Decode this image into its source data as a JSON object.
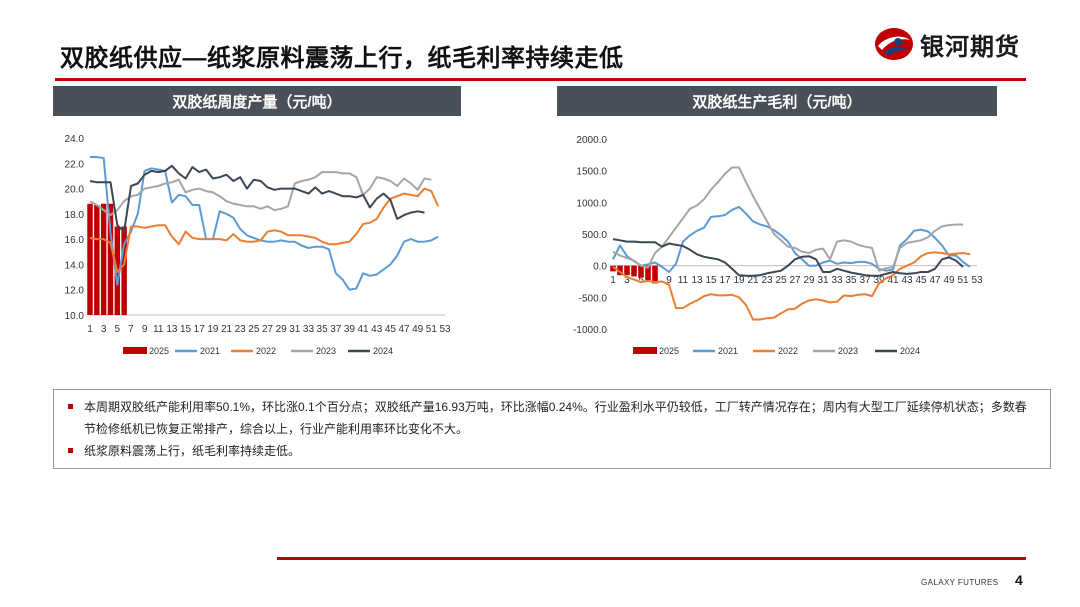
{
  "header": {
    "title": "双胶纸供应—纸浆原料震荡上行，纸毛利率持续走低",
    "logo_text": "银河期货"
  },
  "colors": {
    "accent_red": "#c00000",
    "panel_head": "#4a5059",
    "series_2025": "#c00000",
    "series_2021": "#5b9bd5",
    "series_2022": "#ed7d31",
    "series_2023": "#a5a5a5",
    "series_2024": "#3d4654"
  },
  "chart_data": [
    {
      "type": "line",
      "title": "双胶纸周度产量（元/吨）",
      "ylim": [
        10,
        24
      ],
      "yticks": [
        "24.0",
        "22.0",
        "20.0",
        "18.0",
        "16.0",
        "14.0",
        "12.0",
        "10.0"
      ],
      "xticks": [
        "1",
        "3",
        "5",
        "7",
        "9",
        "11",
        "13",
        "15",
        "17",
        "19",
        "21",
        "23",
        "25",
        "27",
        "29",
        "31",
        "33",
        "35",
        "37",
        "39",
        "41",
        "43",
        "45",
        "47",
        "49",
        "51",
        "53"
      ],
      "bar_series": {
        "name": "2025",
        "x": [
          1,
          2,
          3,
          4,
          5,
          6
        ],
        "values": [
          18.8,
          18.7,
          18.8,
          18.8,
          17.0,
          17.0
        ]
      },
      "series": [
        {
          "name": "2021",
          "values": [
            22.5,
            22.5,
            22.4,
            16.5,
            12.4,
            15.6,
            16.6,
            18.0,
            21.4,
            21.6,
            21.5,
            21.4,
            18.9,
            19.5,
            19.4,
            18.7,
            18.7,
            16.0,
            16.0,
            18.2,
            18.0,
            17.7,
            16.8,
            16.3,
            16.1,
            15.9,
            15.8,
            15.8,
            15.9,
            15.8,
            15.8,
            15.5,
            15.3,
            15.4,
            15.4,
            15.2,
            13.3,
            12.8,
            12.0,
            12.1,
            13.3,
            13.1,
            13.2,
            13.6,
            14.0,
            14.7,
            15.8,
            16.0,
            15.8,
            15.8,
            15.9,
            16.2
          ]
        },
        {
          "name": "2022",
          "values": [
            16.1,
            16.0,
            16.0,
            15.7,
            13.4,
            14.0,
            17.0,
            17.0,
            16.9,
            17.0,
            17.1,
            17.1,
            16.2,
            15.6,
            16.6,
            16.1,
            16.0,
            16.0,
            16.0,
            16.0,
            15.9,
            16.4,
            15.9,
            15.8,
            15.8,
            15.9,
            16.6,
            16.7,
            16.6,
            16.3,
            16.3,
            16.3,
            16.2,
            16.1,
            15.8,
            15.6,
            15.6,
            15.7,
            15.8,
            16.4,
            17.2,
            17.3,
            17.6,
            18.5,
            19.2,
            19.4,
            19.6,
            19.5,
            19.4,
            20.0,
            19.8,
            18.6
          ]
        },
        {
          "name": "2023",
          "values": [
            19.0,
            18.7,
            18.3,
            17.9,
            18.3,
            19.0,
            19.4,
            19.5,
            20.0,
            20.1,
            20.2,
            20.4,
            20.5,
            20.7,
            19.7,
            19.9,
            20.0,
            19.8,
            19.7,
            19.4,
            19.0,
            18.8,
            18.7,
            18.6,
            18.6,
            18.4,
            18.6,
            18.3,
            18.4,
            18.6,
            20.4,
            20.6,
            20.7,
            20.9,
            21.3,
            21.3,
            21.3,
            21.2,
            21.2,
            20.9,
            19.5,
            20.0,
            20.9,
            20.8,
            20.6,
            20.2,
            20.8,
            20.4,
            19.9,
            20.8,
            20.7
          ]
        },
        {
          "name": "2024",
          "values": [
            20.6,
            20.5,
            20.5,
            20.5,
            17.1,
            16.6,
            20.2,
            20.4,
            21.1,
            21.4,
            21.3,
            21.4,
            21.8,
            21.2,
            20.8,
            21.7,
            21.3,
            21.5,
            20.8,
            20.9,
            21.1,
            20.6,
            20.9,
            20.0,
            20.7,
            20.6,
            20.1,
            19.9,
            20.0,
            20.0,
            20.0,
            19.8,
            19.6,
            20.1,
            19.6,
            19.8,
            19.6,
            19.4,
            19.4,
            19.3,
            19.5,
            18.5,
            19.2,
            19.6,
            19.1,
            17.6,
            17.9,
            18.1,
            18.2,
            18.1
          ]
        }
      ],
      "legend": [
        "2025",
        "2021",
        "2022",
        "2023",
        "2024"
      ],
      "legend_placement": "bottom"
    },
    {
      "type": "line",
      "title": "双胶纸生产毛利（元/吨）",
      "ylim": [
        -1000,
        2000
      ],
      "yticks": [
        "2000.0",
        "1500.0",
        "1000.0",
        "500.0",
        "0.0",
        "-500.0",
        "-1000.0"
      ],
      "xticks": [
        "1",
        "3",
        "5",
        "7",
        "9",
        "11",
        "13",
        "15",
        "17",
        "19",
        "21",
        "23",
        "25",
        "27",
        "29",
        "31",
        "33",
        "35",
        "37",
        "39",
        "41",
        "43",
        "45",
        "47",
        "49",
        "51",
        "53"
      ],
      "bar_series": {
        "name": "2025",
        "x": [
          1,
          2,
          3,
          4,
          5,
          6,
          7
        ],
        "values": [
          -90,
          -150,
          -150,
          -170,
          -190,
          -230,
          -280
        ]
      },
      "series": [
        {
          "name": "2021",
          "values": [
            100,
            320,
            150,
            70,
            0,
            20,
            50,
            -20,
            -100,
            30,
            380,
            480,
            550,
            600,
            770,
            780,
            800,
            880,
            930,
            820,
            700,
            650,
            620,
            560,
            480,
            380,
            200,
            100,
            0,
            0,
            50,
            80,
            30,
            50,
            40,
            60,
            60,
            30,
            -50,
            -80,
            -60,
            320,
            420,
            550,
            570,
            540,
            440,
            320,
            160,
            160,
            60,
            -20
          ]
        },
        {
          "name": "2022",
          "values": [
            -20,
            -100,
            -180,
            -220,
            -260,
            -240,
            -260,
            -250,
            -300,
            -670,
            -670,
            -600,
            -550,
            -480,
            -450,
            -470,
            -470,
            -460,
            -500,
            -620,
            -850,
            -850,
            -830,
            -820,
            -750,
            -690,
            -680,
            -600,
            -550,
            -530,
            -550,
            -580,
            -570,
            -470,
            -480,
            -460,
            -450,
            -480,
            -280,
            -200,
            -150,
            -50,
            0,
            50,
            150,
            200,
            210,
            200,
            180,
            190,
            200,
            180
          ]
        },
        {
          "name": "2023",
          "values": [
            220,
            160,
            120,
            80,
            0,
            -30,
            200,
            300,
            450,
            600,
            750,
            900,
            950,
            1050,
            1200,
            1320,
            1450,
            1550,
            1550,
            1320,
            1100,
            900,
            700,
            500,
            400,
            300,
            280,
            220,
            200,
            250,
            270,
            100,
            380,
            400,
            380,
            330,
            300,
            280,
            -80,
            -40,
            -20,
            280,
            360,
            380,
            400,
            450,
            550,
            620,
            640,
            650,
            650
          ]
        },
        {
          "name": "2024",
          "values": [
            420,
            400,
            380,
            380,
            370,
            370,
            370,
            300,
            350,
            330,
            310,
            250,
            180,
            140,
            120,
            100,
            50,
            -50,
            -150,
            -160,
            -160,
            -150,
            -120,
            -100,
            -80,
            0,
            100,
            140,
            150,
            100,
            -100,
            -100,
            -50,
            -80,
            -110,
            -130,
            -150,
            -160,
            -160,
            -130,
            -100,
            -120,
            -130,
            -120,
            -100,
            -100,
            -50,
            100,
            130,
            80,
            -20
          ]
        }
      ],
      "legend": [
        "2025",
        "2021",
        "2022",
        "2023",
        "2024"
      ],
      "legend_placement": "bottom"
    }
  ],
  "notes": [
    "本周期双胶纸产能利用率50.1%，环比涨0.1个百分点；双胶纸产量16.93万吨，环比涨幅0.24%。行业盈利水平仍较低，工厂转产情况存在；周内有大型工厂延续停机状态；多数春节检修纸机已恢复正常排产，综合以上，行业产能利用率环比变化不大。",
    "纸浆原料震荡上行，纸毛利率持续走低。"
  ],
  "footer": {
    "brand": "GALAXY FUTURES",
    "page": "4"
  }
}
